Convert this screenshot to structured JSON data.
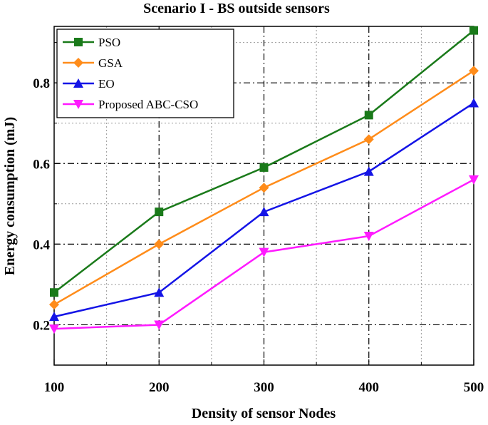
{
  "chart_data": {
    "type": "line",
    "title": "Scenario I - BS outside sensors",
    "xlabel": "Density of sensor Nodes",
    "ylabel": "Energy consumption (mJ)",
    "x": [
      100,
      200,
      300,
      400,
      500
    ],
    "xticks": [
      "100",
      "200",
      "300",
      "400",
      "500"
    ],
    "yticks": [
      "0.2",
      "0.4",
      "0.6",
      "0.8"
    ],
    "xlim": [
      100,
      500
    ],
    "ylim": [
      0.1,
      0.94
    ],
    "grid": true,
    "legend_position": "top-left",
    "series": [
      {
        "name": "PSO",
        "color": "#1a7a1a",
        "marker": "square",
        "values": [
          0.28,
          0.48,
          0.59,
          0.72,
          0.93
        ]
      },
      {
        "name": "GSA",
        "color": "#ff8c1a",
        "marker": "diamond",
        "values": [
          0.25,
          0.4,
          0.54,
          0.66,
          0.83
        ]
      },
      {
        "name": "EO",
        "color": "#1414e6",
        "marker": "triangle-up",
        "values": [
          0.22,
          0.28,
          0.48,
          0.58,
          0.75
        ]
      },
      {
        "name": "Proposed ABC-CSO",
        "color": "#ff1aff",
        "marker": "triangle-down",
        "values": [
          0.19,
          0.2,
          0.38,
          0.42,
          0.56
        ]
      }
    ]
  }
}
